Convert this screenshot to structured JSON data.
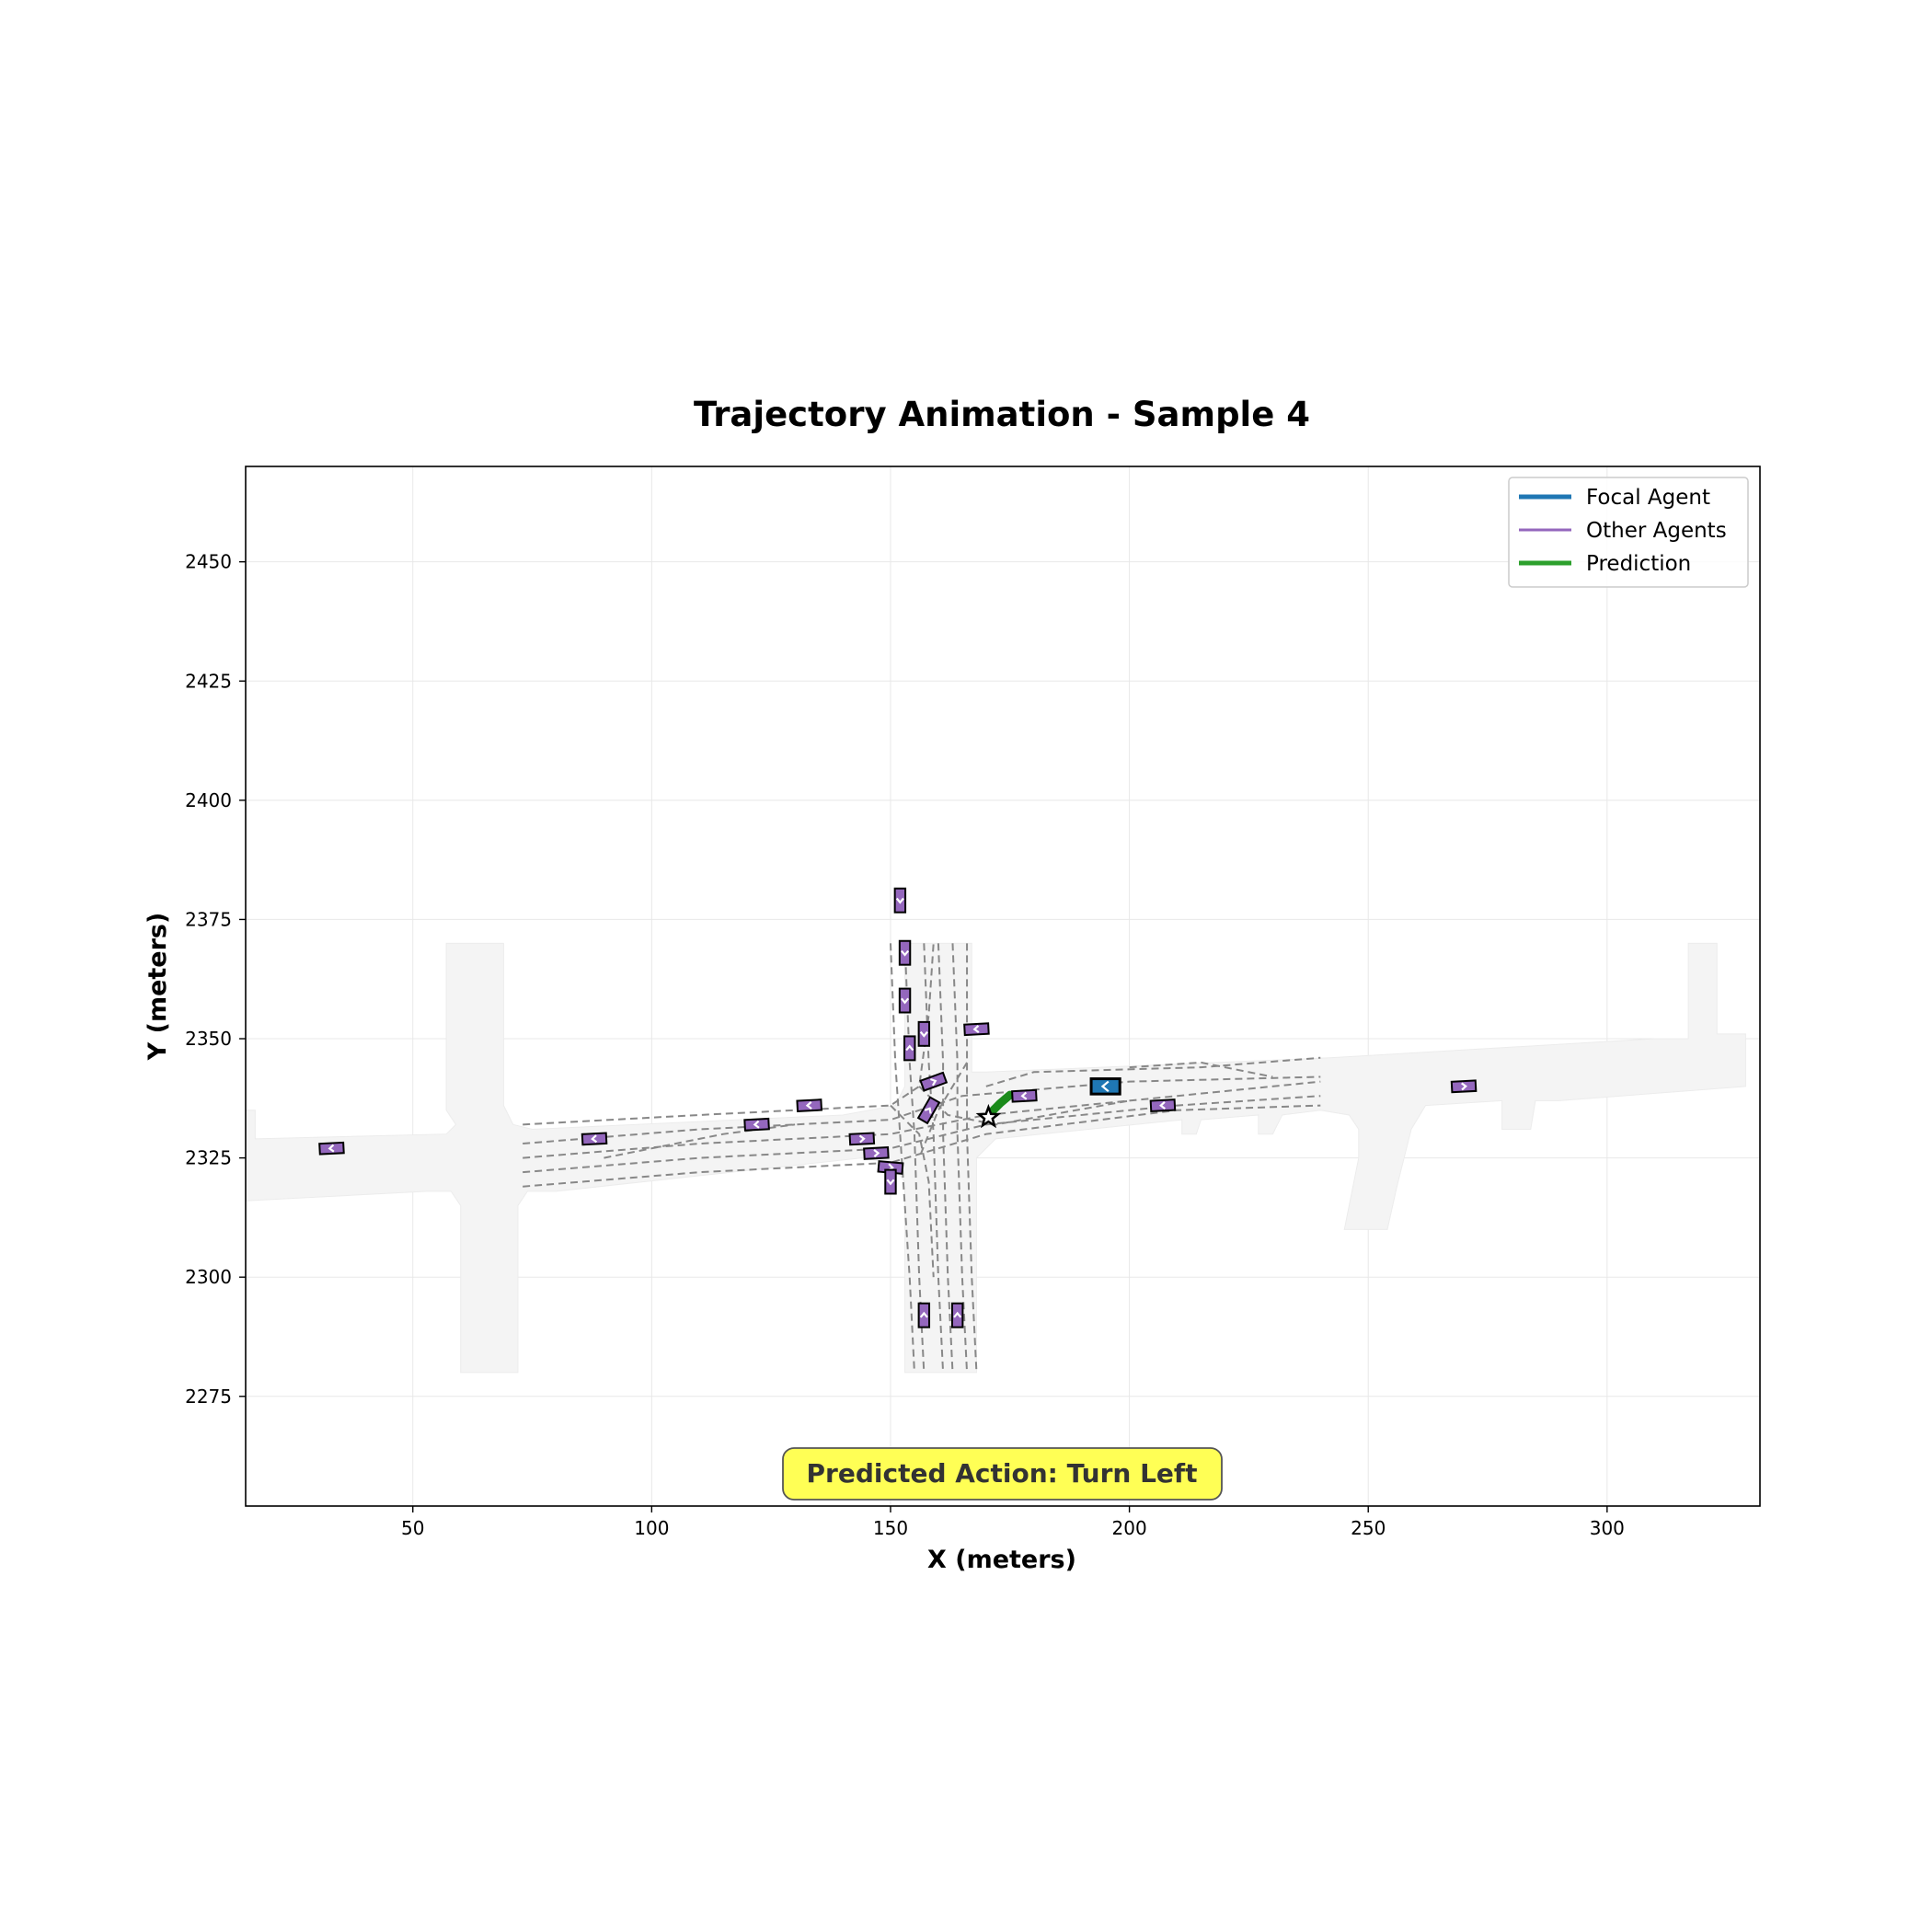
{
  "chart_data": {
    "type": "scatter",
    "title": "Trajectory Animation - Sample 4",
    "xlabel": "X (meters)",
    "ylabel": "Y (meters)",
    "xlim": [
      15,
      332
    ],
    "ylim": [
      2252,
      2470
    ],
    "xticks": [
      50,
      100,
      150,
      200,
      250,
      300
    ],
    "yticks": [
      2275,
      2300,
      2325,
      2350,
      2375,
      2400,
      2425,
      2450
    ],
    "grid": true,
    "legend_position": "top-right",
    "legend": [
      {
        "label": "Focal Agent",
        "color": "#1f77b4",
        "width": 5
      },
      {
        "label": "Other Agents",
        "color": "#9467bd",
        "width": 3
      },
      {
        "label": "Prediction",
        "color": "#2ca02c",
        "width": 5
      }
    ],
    "annotation": "Predicted Action: Turn Left",
    "colors": {
      "road": "#f4f4f4",
      "lane": "#888888",
      "focal": "#1f77b4",
      "other": "#9467bd",
      "prediction": "#2ca02c",
      "annotation_bg": "#ffff55"
    },
    "road_polygons": [
      [
        [
          15,
          2335
        ],
        [
          17,
          2335
        ],
        [
          17,
          2329
        ],
        [
          57,
          2330
        ],
        [
          59,
          2332
        ],
        [
          57,
          2335
        ],
        [
          57,
          2370
        ],
        [
          69,
          2370
        ],
        [
          69,
          2336
        ],
        [
          71,
          2332
        ],
        [
          75,
          2331
        ],
        [
          140,
          2334
        ],
        [
          151,
          2336
        ],
        [
          153,
          2340
        ],
        [
          153,
          2370
        ],
        [
          167,
          2370
        ],
        [
          167,
          2343
        ],
        [
          170,
          2343
        ],
        [
          242,
          2346
        ],
        [
          310,
          2350
        ],
        [
          317,
          2350
        ],
        [
          317,
          2370
        ],
        [
          323,
          2370
        ],
        [
          323,
          2351
        ],
        [
          329,
          2351
        ],
        [
          329,
          2340
        ],
        [
          290,
          2337
        ],
        [
          285,
          2337
        ],
        [
          284,
          2331
        ],
        [
          278,
          2331
        ],
        [
          278,
          2337
        ],
        [
          262,
          2336
        ],
        [
          259,
          2331
        ],
        [
          256,
          2319
        ],
        [
          254,
          2310
        ],
        [
          245,
          2310
        ],
        [
          248,
          2325
        ],
        [
          248,
          2331
        ],
        [
          246,
          2334
        ],
        [
          240,
          2335
        ],
        [
          232,
          2334
        ],
        [
          230,
          2330
        ],
        [
          227,
          2330
        ],
        [
          227,
          2334
        ],
        [
          215,
          2333
        ],
        [
          214,
          2330
        ],
        [
          211,
          2330
        ],
        [
          211,
          2333
        ],
        [
          172,
          2329
        ],
        [
          168,
          2325
        ],
        [
          168,
          2280
        ],
        [
          153,
          2280
        ],
        [
          153,
          2320
        ],
        [
          150,
          2324
        ],
        [
          144,
          2325
        ],
        [
          80,
          2318
        ],
        [
          74,
          2318
        ],
        [
          72,
          2315
        ],
        [
          72,
          2280
        ],
        [
          60,
          2280
        ],
        [
          60,
          2315
        ],
        [
          58,
          2318
        ],
        [
          53,
          2318
        ],
        [
          15,
          2316
        ]
      ]
    ],
    "lanes": [
      [
        [
          73,
          2332
        ],
        [
          110,
          2334
        ],
        [
          150,
          2336
        ],
        [
          156,
          2340
        ],
        [
          158,
          2355
        ],
        [
          159,
          2370
        ]
      ],
      [
        [
          73,
          2328
        ],
        [
          110,
          2331
        ],
        [
          150,
          2333
        ],
        [
          165,
          2338
        ],
        [
          200,
          2341
        ],
        [
          240,
          2342
        ]
      ],
      [
        [
          73,
          2325
        ],
        [
          110,
          2328
        ],
        [
          150,
          2330
        ],
        [
          170,
          2334
        ],
        [
          210,
          2338
        ],
        [
          240,
          2341
        ]
      ],
      [
        [
          73,
          2322
        ],
        [
          110,
          2325
        ],
        [
          150,
          2327
        ],
        [
          170,
          2332
        ],
        [
          210,
          2336
        ],
        [
          240,
          2338
        ]
      ],
      [
        [
          73,
          2319
        ],
        [
          110,
          2322
        ],
        [
          150,
          2324
        ],
        [
          170,
          2330
        ],
        [
          210,
          2335
        ],
        [
          240,
          2336
        ]
      ],
      [
        [
          90,
          2325
        ],
        [
          115,
          2330
        ],
        [
          130,
          2332
        ]
      ],
      [
        [
          150,
          2370
        ],
        [
          151,
          2345
        ],
        [
          152,
          2330
        ],
        [
          154,
          2300
        ],
        [
          155,
          2280
        ]
      ],
      [
        [
          153,
          2370
        ],
        [
          154,
          2345
        ],
        [
          155,
          2330
        ],
        [
          156,
          2300
        ],
        [
          157,
          2280
        ]
      ],
      [
        [
          157,
          2370
        ],
        [
          158,
          2345
        ],
        [
          159,
          2330
        ],
        [
          160,
          2300
        ],
        [
          161,
          2280
        ]
      ],
      [
        [
          160,
          2370
        ],
        [
          161,
          2345
        ],
        [
          161,
          2330
        ],
        [
          162,
          2300
        ],
        [
          163,
          2280
        ]
      ],
      [
        [
          163,
          2370
        ],
        [
          164,
          2345
        ],
        [
          164,
          2330
        ],
        [
          165,
          2300
        ],
        [
          166,
          2280
        ]
      ],
      [
        [
          166,
          2370
        ],
        [
          166,
          2345
        ],
        [
          166,
          2330
        ],
        [
          167,
          2300
        ],
        [
          168,
          2280
        ]
      ],
      [
        [
          156,
          2340
        ],
        [
          162,
          2334
        ],
        [
          172,
          2332
        ],
        [
          200,
          2337
        ]
      ],
      [
        [
          150,
          2336
        ],
        [
          156,
          2330
        ],
        [
          158,
          2320
        ],
        [
          159,
          2300
        ]
      ],
      [
        [
          166,
          2345
        ],
        [
          160,
          2335
        ],
        [
          156,
          2325
        ]
      ],
      [
        [
          170,
          2340
        ],
        [
          180,
          2343
        ],
        [
          215,
          2344
        ],
        [
          240,
          2346
        ]
      ],
      [
        [
          200,
          2344
        ],
        [
          215,
          2345
        ],
        [
          230,
          2342
        ]
      ]
    ],
    "agents": [
      {
        "x": 195,
        "y": 2340,
        "w": 6,
        "h": 3.2,
        "angle": 0,
        "dir": -1,
        "focal": true
      },
      {
        "x": 33,
        "y": 2327,
        "w": 5,
        "h": 2.2,
        "angle": 3,
        "dir": -1,
        "focal": false
      },
      {
        "x": 88,
        "y": 2329,
        "w": 5,
        "h": 2.2,
        "angle": 3,
        "dir": -1,
        "focal": false
      },
      {
        "x": 122,
        "y": 2332,
        "w": 5,
        "h": 2.2,
        "angle": 3,
        "dir": -1,
        "focal": false
      },
      {
        "x": 133,
        "y": 2336,
        "w": 5,
        "h": 2.2,
        "angle": 3,
        "dir": -1,
        "focal": false
      },
      {
        "x": 144,
        "y": 2329,
        "w": 5,
        "h": 2.2,
        "angle": 3,
        "dir": 1,
        "focal": false
      },
      {
        "x": 147,
        "y": 2326,
        "w": 5,
        "h": 2.2,
        "angle": 3,
        "dir": 1,
        "focal": false
      },
      {
        "x": 150,
        "y": 2323,
        "w": 5,
        "h": 2.2,
        "angle": -5,
        "dir": 1,
        "focal": false
      },
      {
        "x": 150,
        "y": 2320,
        "w": 2.2,
        "h": 5,
        "angle": 0,
        "dir": -1,
        "focal": false
      },
      {
        "x": 152,
        "y": 2379,
        "w": 2.2,
        "h": 5,
        "angle": 0,
        "dir": -1,
        "focal": false
      },
      {
        "x": 153,
        "y": 2368,
        "w": 2.2,
        "h": 5,
        "angle": 0,
        "dir": -1,
        "focal": false
      },
      {
        "x": 153,
        "y": 2358,
        "w": 2.2,
        "h": 5,
        "angle": 0,
        "dir": -1,
        "focal": false
      },
      {
        "x": 154,
        "y": 2348,
        "w": 2.2,
        "h": 5,
        "angle": 0,
        "dir": 1,
        "focal": false
      },
      {
        "x": 157,
        "y": 2351,
        "w": 2.2,
        "h": 5,
        "angle": 0,
        "dir": -1,
        "focal": false
      },
      {
        "x": 159,
        "y": 2341,
        "w": 5,
        "h": 2.2,
        "angle": 20,
        "dir": 1,
        "focal": false
      },
      {
        "x": 158,
        "y": 2335,
        "w": 2.2,
        "h": 5,
        "angle": -30,
        "dir": 1,
        "focal": false
      },
      {
        "x": 168,
        "y": 2352,
        "w": 5,
        "h": 2.2,
        "angle": 3,
        "dir": -1,
        "focal": false
      },
      {
        "x": 178,
        "y": 2338,
        "w": 5,
        "h": 2.2,
        "angle": 3,
        "dir": -1,
        "focal": false
      },
      {
        "x": 207,
        "y": 2336,
        "w": 5,
        "h": 2.2,
        "angle": 3,
        "dir": -1,
        "focal": false
      },
      {
        "x": 270,
        "y": 2340,
        "w": 5,
        "h": 2.2,
        "angle": 3,
        "dir": 1,
        "focal": false
      },
      {
        "x": 157,
        "y": 2292,
        "w": 2.2,
        "h": 5,
        "angle": 0,
        "dir": 1,
        "focal": false
      },
      {
        "x": 164,
        "y": 2292,
        "w": 2.2,
        "h": 5,
        "angle": 0,
        "dir": 1,
        "focal": false
      }
    ],
    "prediction": [
      [
        170.5,
        2333.5
      ],
      [
        171.5,
        2335
      ],
      [
        173,
        2336.5
      ],
      [
        175,
        2338.2
      ]
    ],
    "start_marker": {
      "x": 170.5,
      "y": 2333.5
    }
  }
}
